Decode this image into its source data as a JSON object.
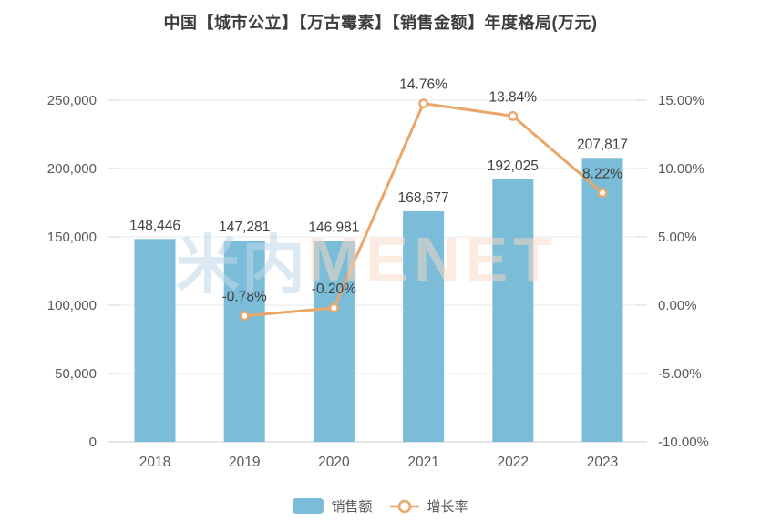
{
  "title": "中国【城市公立】【万古霉素】【销售金额】年度格局(万元)",
  "watermark": {
    "cjk": "米内",
    "latin": "MENET"
  },
  "legend": {
    "sales": "销售额",
    "growth": "增长率"
  },
  "colors": {
    "bar": "#7bbdd9",
    "line": "#e9a76a",
    "data_label": "#404040",
    "axis_label": "#595959",
    "grid": "#e9e9e9",
    "axis_line": "#d5d5d5"
  },
  "chart_data": {
    "type": "bar+line",
    "title": "中国【城市公立】【万古霉素】【销售金额】年度格局(万元)",
    "categories": [
      "2018",
      "2019",
      "2020",
      "2021",
      "2022",
      "2023"
    ],
    "series": [
      {
        "name": "销售额",
        "type": "bar",
        "axis": "left",
        "values": [
          148446,
          147281,
          146981,
          168677,
          192025,
          207817
        ],
        "labels": [
          "148,446",
          "147,281",
          "146,981",
          "168,677",
          "192,025",
          "207,817"
        ]
      },
      {
        "name": "增长率",
        "type": "line",
        "axis": "right",
        "values": [
          null,
          -0.78,
          -0.2,
          14.76,
          13.84,
          8.22
        ],
        "labels": [
          null,
          "-0.78%",
          "-0.20%",
          "14.76%",
          "13.84%",
          "8.22%"
        ]
      }
    ],
    "left_axis": {
      "min": 0,
      "max": 250000,
      "ticks": [
        "250,000",
        "200,000",
        "150,000",
        "100,000",
        "50,000",
        "0"
      ]
    },
    "right_axis": {
      "min": -10,
      "max": 15,
      "ticks": [
        "15.00%",
        "10.00%",
        "5.00%",
        "0.00%",
        "-5.00%",
        "-10.00%"
      ]
    },
    "grid": true,
    "legend_position": "bottom",
    "units": "万元"
  }
}
